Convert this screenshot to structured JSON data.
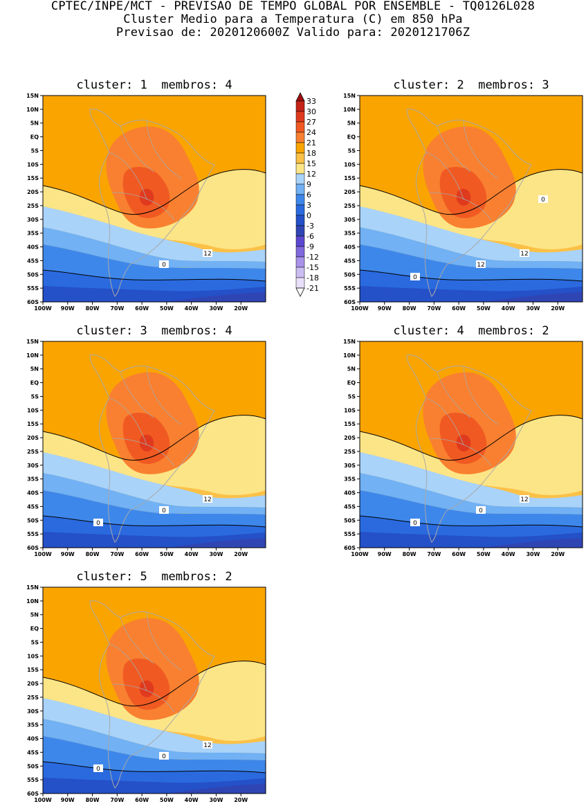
{
  "header": {
    "line1": "CPTEC/INPE/MCT - PREVISAO DE TEMPO GLOBAL POR ENSEMBLE - TQ0126L028",
    "line2": "Cluster Medio para a Temperatura (C) em 850 hPa",
    "line3": "Previsao de: 2020120600Z   Valido para: 2020121706Z"
  },
  "axes": {
    "lat_labels": [
      "15N",
      "10N",
      "5N",
      "EQ",
      "5S",
      "10S",
      "15S",
      "20S",
      "25S",
      "30S",
      "35S",
      "40S",
      "45S",
      "50S",
      "55S",
      "60S"
    ],
    "lon_labels": [
      "100W",
      "90W",
      "80W",
      "70W",
      "60W",
      "50W",
      "40W",
      "30W",
      "20W"
    ],
    "lat_range": [
      -60,
      15
    ],
    "lon_range": [
      -100,
      -10
    ]
  },
  "colorbar": {
    "labels": [
      "33",
      "30",
      "27",
      "24",
      "21",
      "18",
      "15",
      "12",
      "9",
      "6",
      "3",
      "0",
      "-3",
      "-6",
      "-9",
      "-12",
      "-15",
      "-18",
      "-21"
    ],
    "colors": [
      "#a01010",
      "#c42418",
      "#e03a1e",
      "#f05a22",
      "#f98030",
      "#faa400",
      "#fbc147",
      "#fce587",
      "#a9d3f9",
      "#71b1f4",
      "#3e87ea",
      "#2a6ade",
      "#2450c8",
      "#3045b4",
      "#5b48d0",
      "#8068dd",
      "#a992ea",
      "#cbbdf2",
      "#e8e0fa",
      "#ffffff"
    ]
  },
  "clusters": [
    {
      "label": "cluster:",
      "number": "1",
      "members_label": "membros:",
      "members": "4",
      "contours": [
        "12",
        "0"
      ]
    },
    {
      "label": "cluster:",
      "number": "2",
      "members_label": "membros:",
      "members": "3",
      "contours": [
        "12",
        "12",
        "0",
        "0"
      ]
    },
    {
      "label": "cluster:",
      "number": "3",
      "members_label": "membros:",
      "members": "4",
      "contours": [
        "12",
        "0",
        "0"
      ]
    },
    {
      "label": "cluster:",
      "number": "4",
      "members_label": "membros:",
      "members": "2",
      "contours": [
        "12",
        "0",
        "0"
      ]
    },
    {
      "label": "cluster:",
      "number": "5",
      "members_label": "membros:",
      "members": "2",
      "contours": [
        "12",
        "0",
        "0"
      ]
    }
  ]
}
